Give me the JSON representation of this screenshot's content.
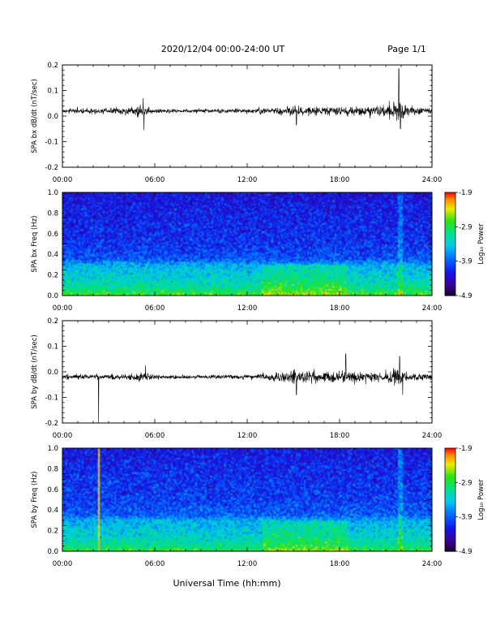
{
  "header": {
    "title": "2020/12/04  00:00-24:00 UT",
    "page": "Page 1/1"
  },
  "xlabel": "Universal Time (hh:mm)",
  "colorbar": {
    "label": "Log₁₀ Power",
    "ticks": [
      "-1.9",
      "-2.9",
      "-3.9",
      "-4.9"
    ],
    "range": [
      -4.9,
      -1.9
    ]
  },
  "chart_data": [
    {
      "type": "line",
      "ylabel": "SPA bx dB/dt (nT/sec)",
      "xlim": [
        0,
        24
      ],
      "ylim": [
        -0.2,
        0.2
      ],
      "xtick_labels": [
        "00:00",
        "06:00",
        "12:00",
        "18:00",
        "24:00"
      ],
      "ytick_labels": [
        "0.2",
        "0.1",
        "0.0",
        "-0.1",
        "-0.2"
      ],
      "ytick_values": [
        0.2,
        0.1,
        0.0,
        -0.1,
        -0.2
      ],
      "series": [
        {
          "baseline": 0.02,
          "envelope": {
            "hours": [
              0,
              2,
              4,
              5,
              5.5,
              6,
              8,
              10,
              12,
              14,
              15,
              16,
              18,
              20,
              21,
              21.6,
              22,
              22.5,
              23,
              24
            ],
            "amplitude": [
              0.012,
              0.014,
              0.016,
              0.03,
              0.022,
              0.012,
              0.01,
              0.01,
              0.012,
              0.018,
              0.026,
              0.024,
              0.02,
              0.026,
              0.028,
              0.06,
              0.045,
              0.025,
              0.018,
              0.015
            ]
          },
          "spikes": [
            {
              "hour": 5.25,
              "value": 0.07
            },
            {
              "hour": 5.3,
              "value": -0.055
            },
            {
              "hour": 21.85,
              "value": 0.185
            },
            {
              "hour": 21.95,
              "value": -0.05
            },
            {
              "hour": 15.2,
              "value": -0.035
            }
          ]
        }
      ]
    },
    {
      "type": "heatmap",
      "ylabel": "SPA bx Freq (Hz)",
      "xlim": [
        0,
        24
      ],
      "ylim": [
        0.0,
        1.0
      ],
      "xtick_labels": [
        "00:00",
        "06:00",
        "12:00",
        "18:00",
        "24:00"
      ],
      "ytick_labels": [
        "1.0",
        "0.8",
        "0.6",
        "0.4",
        "0.2",
        "0.0"
      ],
      "ytick_values": [
        1.0,
        0.8,
        0.6,
        0.4,
        0.2,
        0.0
      ],
      "color_scale": "rainbow",
      "zlim": [
        -4.9,
        -1.9
      ],
      "background_power": {
        "freq": [
          0.0,
          0.05,
          0.15,
          0.3,
          0.35,
          0.5,
          0.8,
          1.0
        ],
        "log_power": [
          -2.7,
          -3.05,
          -3.3,
          -3.55,
          -3.95,
          -4.1,
          -4.2,
          -4.3
        ]
      },
      "enhancements": [
        {
          "hours": [
            13,
            18.5
          ],
          "freq": [
            0.0,
            0.3
          ],
          "delta": 0.35
        },
        {
          "hours": [
            21.8,
            22.1
          ],
          "freq": [
            0.0,
            1.0
          ],
          "delta": 0.5
        }
      ],
      "strong_lines": []
    },
    {
      "type": "line",
      "ylabel": "SPA by dB/dt (nT/sec)",
      "xlim": [
        0,
        24
      ],
      "ylim": [
        -0.2,
        0.2
      ],
      "xtick_labels": [
        "00:00",
        "06:00",
        "12:00",
        "18:00",
        "24:00"
      ],
      "ytick_labels": [
        "0.2",
        "0.1",
        "0.0",
        "-0.1",
        "-0.2"
      ],
      "ytick_values": [
        0.2,
        0.1,
        0.0,
        -0.1,
        -0.2
      ],
      "series": [
        {
          "baseline": -0.02,
          "envelope": {
            "hours": [
              0,
              2,
              4,
              5,
              5.5,
              6,
              8,
              10,
              12,
              14,
              15,
              16,
              18,
              20,
              21,
              21.6,
              22,
              22.5,
              23,
              24
            ],
            "amplitude": [
              0.012,
              0.013,
              0.014,
              0.022,
              0.02,
              0.012,
              0.01,
              0.01,
              0.012,
              0.02,
              0.035,
              0.03,
              0.03,
              0.028,
              0.025,
              0.04,
              0.035,
              0.022,
              0.018,
              0.015
            ]
          },
          "spikes": [
            {
              "hour": 2.35,
              "value": -0.205
            },
            {
              "hour": 5.4,
              "value": 0.025
            },
            {
              "hour": 15.2,
              "value": -0.09
            },
            {
              "hour": 18.4,
              "value": 0.07
            },
            {
              "hour": 21.9,
              "value": 0.06
            },
            {
              "hour": 22.1,
              "value": -0.09
            }
          ]
        }
      ]
    },
    {
      "type": "heatmap",
      "ylabel": "SPA by Freq (Hz)",
      "xlim": [
        0,
        24
      ],
      "ylim": [
        0.0,
        1.0
      ],
      "xtick_labels": [
        "00:00",
        "06:00",
        "12:00",
        "18:00",
        "24:00"
      ],
      "ytick_labels": [
        "1.0",
        "0.8",
        "0.6",
        "0.4",
        "0.2",
        "0.0"
      ],
      "ytick_values": [
        1.0,
        0.8,
        0.6,
        0.4,
        0.2,
        0.0
      ],
      "color_scale": "rainbow",
      "zlim": [
        -4.9,
        -1.9
      ],
      "background_power": {
        "freq": [
          0.0,
          0.05,
          0.15,
          0.3,
          0.35,
          0.5,
          0.8,
          1.0
        ],
        "log_power": [
          -2.75,
          -3.1,
          -3.35,
          -3.55,
          -3.9,
          -4.05,
          -4.15,
          -4.25
        ]
      },
      "enhancements": [
        {
          "hours": [
            13,
            18.5
          ],
          "freq": [
            0.0,
            0.3
          ],
          "delta": 0.35
        },
        {
          "hours": [
            21.8,
            22.1
          ],
          "freq": [
            0.0,
            1.0
          ],
          "delta": 0.5
        }
      ],
      "strong_lines": [
        {
          "hour": 2.35,
          "log_power": -2.3
        }
      ]
    }
  ]
}
